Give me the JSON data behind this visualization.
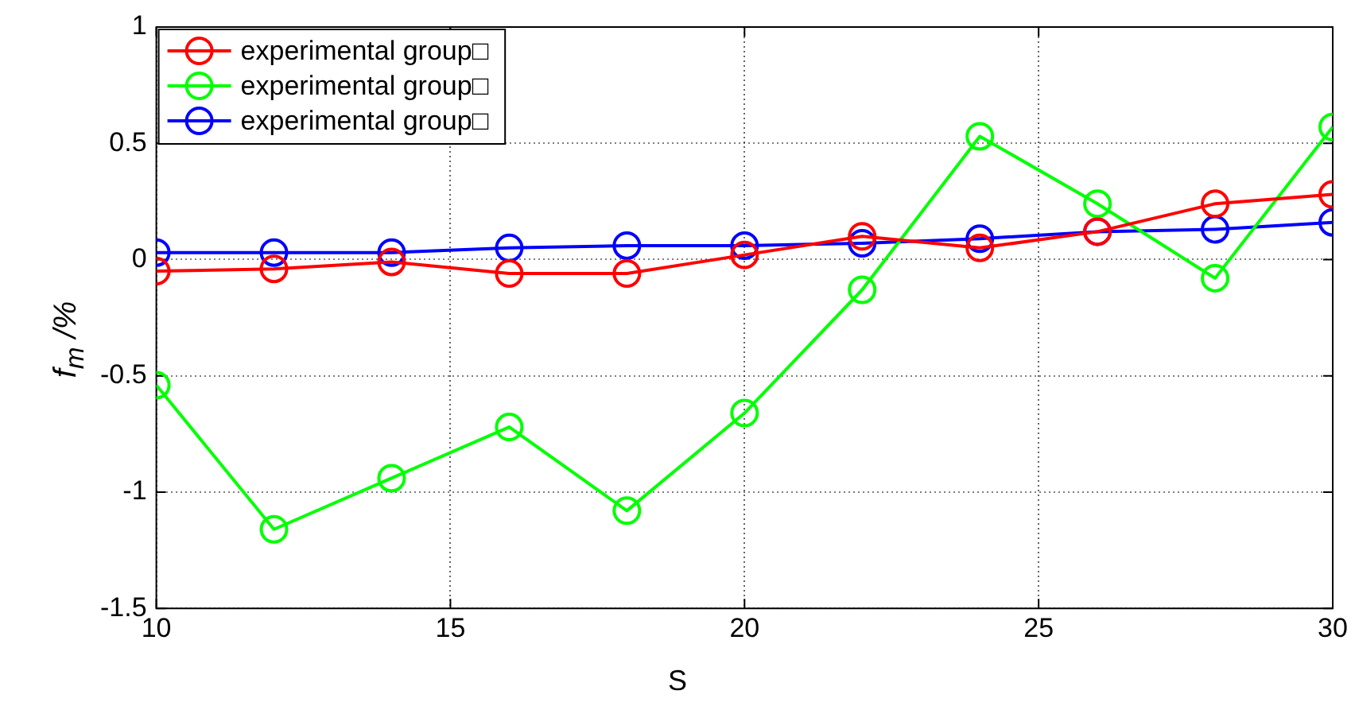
{
  "chart_data": {
    "type": "line",
    "xlabel": "S",
    "ylabel": "f$_{m}$ /%",
    "x": [
      10,
      12,
      14,
      16,
      18,
      20,
      22,
      24,
      26,
      28,
      30
    ],
    "series": [
      {
        "name": "experimental group□",
        "color": "#ff0000",
        "values": [
          -0.05,
          -0.04,
          -0.01,
          -0.06,
          -0.06,
          0.02,
          0.1,
          0.05,
          0.12,
          0.24,
          0.28
        ]
      },
      {
        "name": "experimental group□",
        "color": "#00ff00",
        "values": [
          -0.54,
          -1.16,
          -0.94,
          -0.72,
          -1.08,
          -0.66,
          -0.13,
          0.53,
          0.24,
          -0.08,
          0.57
        ]
      },
      {
        "name": "experimental group□",
        "color": "#0000ff",
        "values": [
          0.03,
          0.03,
          0.03,
          0.05,
          0.06,
          0.06,
          0.07,
          0.09,
          0.12,
          0.13,
          0.16
        ]
      }
    ],
    "xlim": [
      10,
      30
    ],
    "xticks": [
      10,
      15,
      20,
      25,
      30
    ],
    "ylim": [
      -1.5,
      1
    ],
    "yticks": [
      -1.5,
      -1,
      -0.5,
      0,
      0.5,
      1
    ],
    "grid": true,
    "legend": "top left",
    "marker": "circle",
    "line_style": "solid"
  }
}
